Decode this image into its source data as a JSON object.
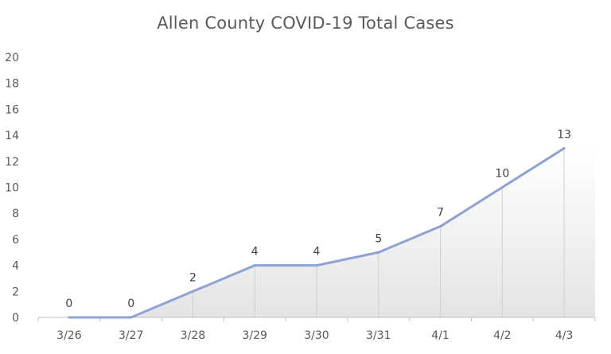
{
  "chart_data": {
    "type": "area",
    "title": "Allen County COVID-19 Total Cases",
    "xlabel": "",
    "ylabel": "",
    "categories": [
      "3/26",
      "3/27",
      "3/28",
      "3/29",
      "3/30",
      "3/31",
      "4/1",
      "4/2",
      "4/3"
    ],
    "series": [
      {
        "values": [
          0,
          0,
          2,
          4,
          4,
          5,
          7,
          10,
          13
        ]
      }
    ],
    "data_labels": [
      "0",
      "0",
      "2",
      "4",
      "4",
      "5",
      "7",
      "10",
      "13"
    ],
    "y_ticks": [
      "0",
      "2",
      "4",
      "6",
      "8",
      "10",
      "12",
      "14",
      "16",
      "18",
      "20"
    ],
    "ylim": [
      0,
      20
    ],
    "grid": false,
    "drop_lines": true,
    "colors": {
      "line": "#8FA2D4",
      "area_top": "#FFFFFF",
      "area_bottom": "#E4E4E4",
      "drop_line": "#D0D0D0",
      "axis": "#BFBFBF",
      "text": "#595959"
    }
  }
}
